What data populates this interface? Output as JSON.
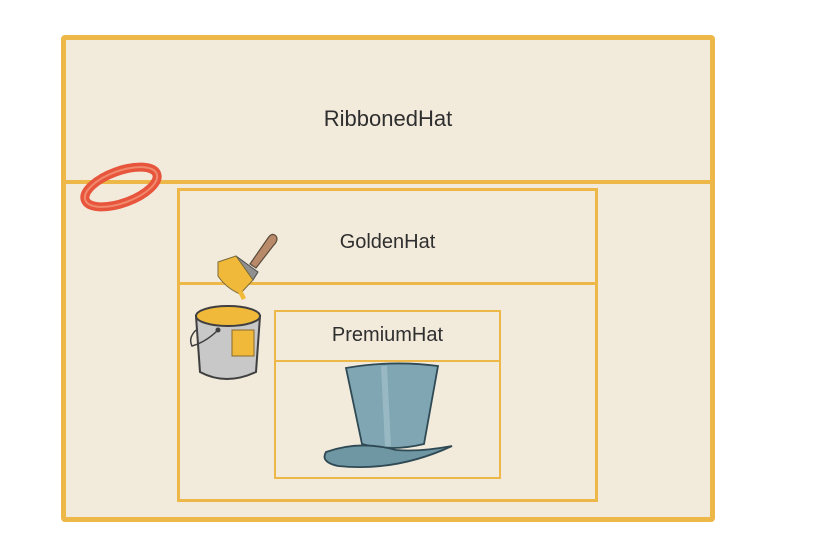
{
  "diagram": {
    "outer_box": {
      "label": "RibbonedHat"
    },
    "middle_box": {
      "label": "GoldenHat"
    },
    "inner_box": {
      "label": "PremiumHat"
    },
    "icons": {
      "ribbon": "ribbon-icon",
      "paint_brush": "paint-brush-icon",
      "paint_bucket": "paint-bucket-icon",
      "top_hat": "top-hat-icon"
    },
    "colors": {
      "border": "#edb847",
      "box_fill": "#f2eadb",
      "ribbon": "#e8553d",
      "paint": "#f0b93a",
      "bucket": "#c2c2c2",
      "hat": "#7fa6b2"
    }
  }
}
